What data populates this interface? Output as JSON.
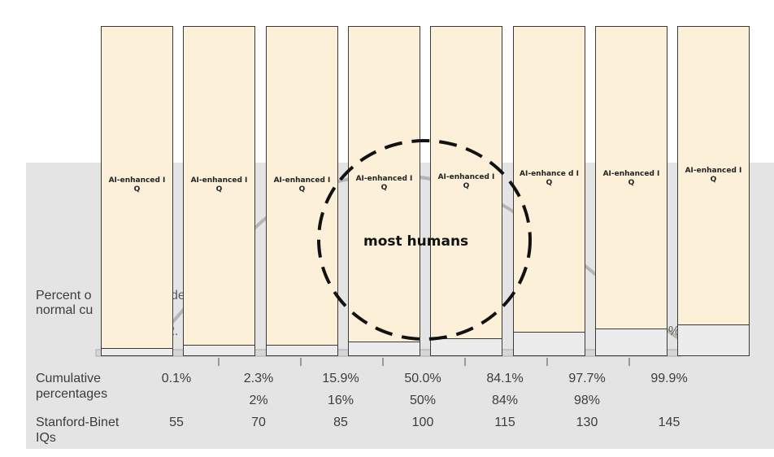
{
  "background_text": {
    "percent_row_label_line1": "Percent o",
    "percent_row_label_line1_tail": "de",
    "percent_row_label_line2": "normal cu",
    "fragment_left": "2.",
    "fragment_right": "%"
  },
  "rows": {
    "cumulative_label": "Cumulative\npercentages",
    "cumulative_top": [
      "0.1%",
      "2.3%",
      "15.9%",
      "50.0%",
      "84.1%",
      "97.7%",
      "99.9%"
    ],
    "cumulative_bottom": [
      "2%",
      "16%",
      "50%",
      "84%",
      "98%"
    ],
    "stanford_label": "Stanford-Binet\nIQs",
    "stanford_values": [
      "55",
      "70",
      "85",
      "100",
      "115",
      "130",
      "145"
    ]
  },
  "bars": [
    {
      "label": "AI-enhanced IQ",
      "fill": 0.02
    },
    {
      "label": "AI-enhanced IQ",
      "fill": 0.03
    },
    {
      "label": "AI-enhanced IQ",
      "fill": 0.03
    },
    {
      "label": "AI-enhanced IQ",
      "fill": 0.04
    },
    {
      "label": "AI-enhanced IQ",
      "fill": 0.05
    },
    {
      "label": "AI-enhance d IQ",
      "fill": 0.07
    },
    {
      "label": "AI-enhanced IQ",
      "fill": 0.08
    },
    {
      "label": "AI-enhanced IQ",
      "fill": 0.09
    }
  ],
  "circle_label": "most humans",
  "colors": {
    "bar_fill": "#fdf0d8",
    "bar_level": "#ececec",
    "panel": "#e4e4e4",
    "circle": "#111111"
  }
}
